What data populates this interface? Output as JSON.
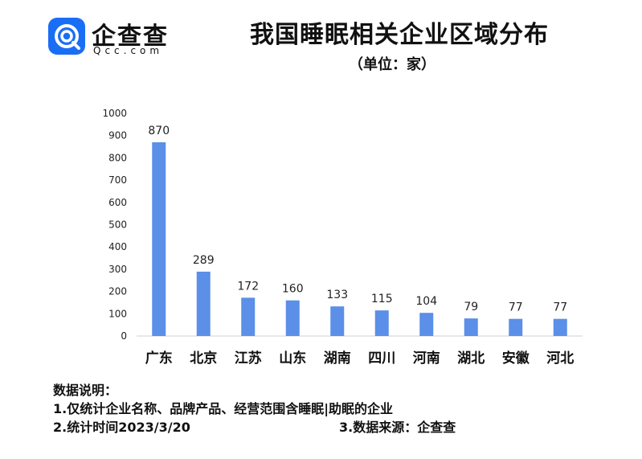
{
  "logo": {
    "name": "企查查",
    "sub": "Qcc.com",
    "brand_color": "#1a6ef5"
  },
  "title": "我国睡眠相关企业区域分布",
  "unit": "（单位：家）",
  "notes": {
    "heading": "数据说明：",
    "line1": "1.仅统计企业名称、品牌产品、经营范围含睡眠|助眠的企业",
    "line2": "2.统计时间2023/3/20",
    "line3": "3.数据来源：企查查"
  },
  "chart_data": {
    "type": "bar",
    "categories": [
      "广东",
      "北京",
      "江苏",
      "山东",
      "湖南",
      "四川",
      "河南",
      "湖北",
      "安徽",
      "河北"
    ],
    "values": [
      870,
      289,
      172,
      160,
      133,
      115,
      104,
      79,
      77,
      77
    ],
    "ylim": [
      0,
      1000
    ],
    "yticks": [
      0,
      100,
      200,
      300,
      400,
      500,
      600,
      700,
      800,
      900,
      1000
    ],
    "grid": false,
    "bar_color": "#5b8fe8",
    "data_labels": true
  }
}
